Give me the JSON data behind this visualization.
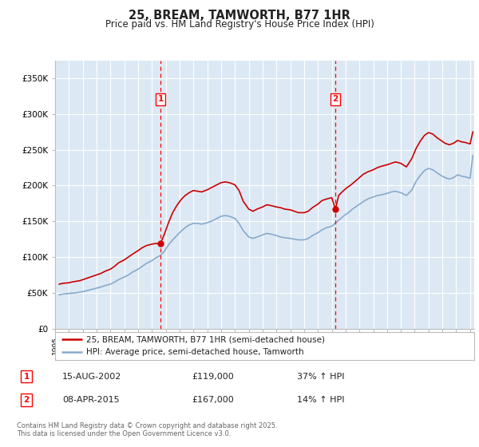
{
  "title": "25, BREAM, TAMWORTH, B77 1HR",
  "subtitle": "Price paid vs. HM Land Registry's House Price Index (HPI)",
  "ylabel_ticks": [
    "£0",
    "£50K",
    "£100K",
    "£150K",
    "£200K",
    "£250K",
    "£300K",
    "£350K"
  ],
  "ytick_values": [
    0,
    50000,
    100000,
    150000,
    200000,
    250000,
    300000,
    350000
  ],
  "ylim": [
    0,
    375000
  ],
  "xlim_start": 1995.3,
  "xlim_end": 2025.3,
  "background_color": "#ffffff",
  "plot_bg_color": "#dce9f5",
  "grid_color": "#ffffff",
  "sale1_date": 2002.62,
  "sale2_date": 2015.27,
  "house_color": "#cc0000",
  "hpi_color": "#88aacc",
  "legend_house": "25, BREAM, TAMWORTH, B77 1HR (semi-detached house)",
  "legend_hpi": "HPI: Average price, semi-detached house, Tamworth",
  "note1_label": "1",
  "note1_date": "15-AUG-2002",
  "note1_price": "£119,000",
  "note1_hpi": "37% ↑ HPI",
  "note2_label": "2",
  "note2_date": "08-APR-2015",
  "note2_price": "£167,000",
  "note2_hpi": "14% ↑ HPI",
  "footer": "Contains HM Land Registry data © Crown copyright and database right 2025.\nThis data is licensed under the Open Government Licence v3.0.",
  "house_prices_x": [
    1995.3,
    1995.5,
    1995.7,
    1996.0,
    1996.2,
    1996.5,
    1996.8,
    1997.1,
    1997.4,
    1997.7,
    1998.0,
    1998.3,
    1998.6,
    1999.0,
    1999.3,
    1999.6,
    2000.0,
    2000.3,
    2000.6,
    2001.0,
    2001.3,
    2001.6,
    2002.0,
    2002.3,
    2002.62,
    2002.9,
    2003.2,
    2003.5,
    2003.8,
    2004.1,
    2004.4,
    2004.7,
    2005.0,
    2005.3,
    2005.6,
    2006.0,
    2006.3,
    2006.6,
    2007.0,
    2007.3,
    2007.6,
    2008.0,
    2008.3,
    2008.6,
    2009.0,
    2009.3,
    2009.6,
    2010.0,
    2010.3,
    2010.6,
    2011.0,
    2011.3,
    2011.6,
    2012.0,
    2012.3,
    2012.6,
    2013.0,
    2013.3,
    2013.6,
    2014.0,
    2014.3,
    2014.6,
    2015.0,
    2015.27,
    2015.5,
    2015.8,
    2016.1,
    2016.4,
    2016.7,
    2017.0,
    2017.3,
    2017.6,
    2018.0,
    2018.3,
    2018.6,
    2019.0,
    2019.3,
    2019.6,
    2020.0,
    2020.4,
    2020.8,
    2021.1,
    2021.4,
    2021.7,
    2022.0,
    2022.3,
    2022.6,
    2022.9,
    2023.2,
    2023.5,
    2023.8,
    2024.1,
    2024.4,
    2024.7,
    2025.0,
    2025.2
  ],
  "house_prices_y": [
    62000,
    63000,
    63500,
    64000,
    65000,
    66000,
    67000,
    69000,
    71000,
    73000,
    75000,
    77000,
    80000,
    83000,
    87000,
    92000,
    96000,
    100000,
    104000,
    109000,
    113000,
    116000,
    118000,
    119000,
    119000,
    132000,
    148000,
    162000,
    172000,
    180000,
    186000,
    190000,
    193000,
    192000,
    191000,
    194000,
    197000,
    200000,
    204000,
    205000,
    204000,
    201000,
    193000,
    178000,
    167000,
    164000,
    167000,
    170000,
    173000,
    172000,
    170000,
    169000,
    167000,
    166000,
    164000,
    162000,
    162000,
    164000,
    169000,
    174000,
    179000,
    181000,
    183000,
    167000,
    186000,
    192000,
    197000,
    201000,
    206000,
    211000,
    216000,
    219000,
    222000,
    225000,
    227000,
    229000,
    231000,
    233000,
    231000,
    226000,
    238000,
    252000,
    262000,
    270000,
    274000,
    272000,
    267000,
    263000,
    259000,
    257000,
    259000,
    263000,
    261000,
    260000,
    258000,
    275000
  ],
  "hpi_x": [
    1995.3,
    1995.5,
    1995.7,
    1996.0,
    1996.2,
    1996.5,
    1996.8,
    1997.1,
    1997.4,
    1997.7,
    1998.0,
    1998.3,
    1998.6,
    1999.0,
    1999.3,
    1999.6,
    2000.0,
    2000.3,
    2000.6,
    2001.0,
    2001.3,
    2001.6,
    2002.0,
    2002.3,
    2002.6,
    2002.9,
    2003.2,
    2003.5,
    2003.8,
    2004.1,
    2004.4,
    2004.7,
    2005.0,
    2005.3,
    2005.6,
    2006.0,
    2006.3,
    2006.6,
    2007.0,
    2007.3,
    2007.6,
    2008.0,
    2008.3,
    2008.6,
    2009.0,
    2009.3,
    2009.6,
    2010.0,
    2010.3,
    2010.6,
    2011.0,
    2011.3,
    2011.6,
    2012.0,
    2012.3,
    2012.6,
    2013.0,
    2013.3,
    2013.6,
    2014.0,
    2014.3,
    2014.6,
    2015.0,
    2015.3,
    2015.6,
    2015.9,
    2016.2,
    2016.5,
    2016.8,
    2017.1,
    2017.4,
    2017.7,
    2018.0,
    2018.3,
    2018.6,
    2019.0,
    2019.3,
    2019.6,
    2020.0,
    2020.4,
    2020.8,
    2021.1,
    2021.4,
    2021.7,
    2022.0,
    2022.3,
    2022.6,
    2022.9,
    2023.2,
    2023.5,
    2023.8,
    2024.1,
    2024.4,
    2024.7,
    2025.0,
    2025.2
  ],
  "hpi_y": [
    47000,
    48000,
    48500,
    49000,
    49500,
    50000,
    51000,
    52000,
    53500,
    55000,
    56500,
    58000,
    60000,
    62000,
    65000,
    68500,
    72000,
    75000,
    79000,
    83000,
    87000,
    91000,
    95000,
    99000,
    102000,
    108000,
    117000,
    124000,
    130000,
    136000,
    141000,
    145000,
    147000,
    147000,
    146000,
    148000,
    150000,
    153000,
    157000,
    158000,
    157000,
    154000,
    147000,
    137000,
    128000,
    126000,
    128000,
    131000,
    133000,
    132000,
    130000,
    128000,
    127000,
    126000,
    125000,
    124000,
    124000,
    126000,
    130000,
    134000,
    138000,
    141000,
    143000,
    148000,
    153000,
    158000,
    162000,
    167000,
    171000,
    175000,
    179000,
    182000,
    184000,
    186000,
    187000,
    189000,
    191000,
    192000,
    190000,
    186000,
    194000,
    206000,
    214000,
    221000,
    224000,
    222000,
    218000,
    214000,
    211000,
    209000,
    211000,
    215000,
    213000,
    212000,
    210000,
    242000
  ]
}
